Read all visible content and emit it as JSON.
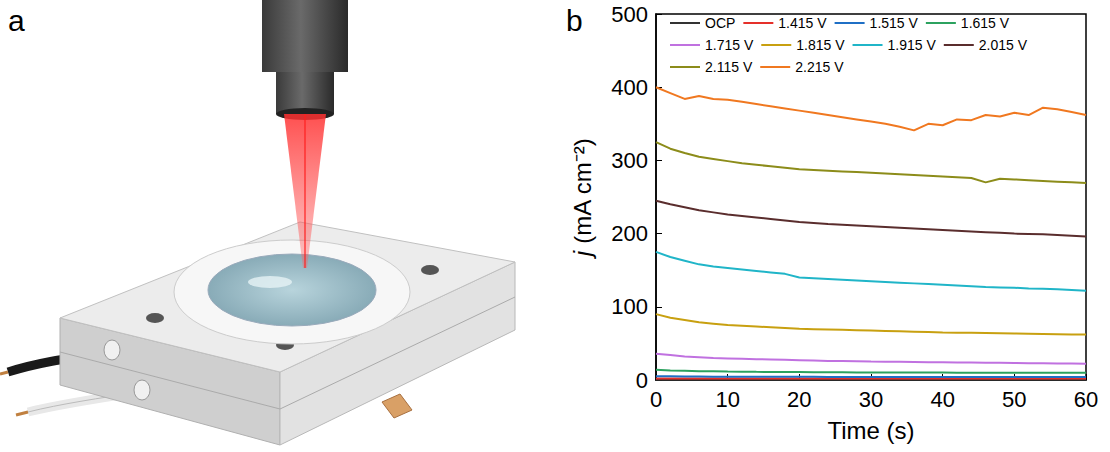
{
  "panel_labels": [
    "a",
    "b"
  ],
  "chart_data": {
    "type": "line",
    "x_label": "Time (s)",
    "y_label": "j (mA cm⁻²)",
    "xlim": [
      0,
      60
    ],
    "xticks": [
      0,
      10,
      20,
      30,
      40,
      50,
      60
    ],
    "ylim": [
      0,
      500
    ],
    "yticks": [
      0,
      100,
      200,
      300,
      400,
      500
    ],
    "grid": false,
    "legend": "upper left",
    "x": [
      0,
      2,
      4,
      6,
      8,
      10,
      12,
      14,
      16,
      18,
      20,
      22,
      24,
      26,
      28,
      30,
      32,
      34,
      36,
      38,
      40,
      42,
      44,
      46,
      48,
      50,
      52,
      54,
      56,
      58,
      60
    ],
    "series": [
      {
        "name": "OCP",
        "color": "#333333",
        "values": [
          0.3,
          0.3,
          0.3,
          0.3,
          0.3,
          0.3,
          0.3,
          0.3,
          0.3,
          0.3,
          0.3,
          0.3,
          0.3,
          0.3,
          0.3,
          0.3,
          0.3,
          0.3,
          0.3,
          0.3,
          0.3,
          0.3,
          0.3,
          0.3,
          0.3,
          0.3,
          0.3,
          0.3,
          0.3,
          0.3,
          0.3
        ]
      },
      {
        "name": "1.415 V",
        "color": "#e5302a",
        "values": [
          2,
          2,
          2,
          2,
          2,
          2,
          2,
          2,
          2,
          2,
          2,
          2,
          2,
          2,
          2,
          2,
          2,
          2,
          2,
          2,
          2,
          2,
          2,
          2,
          2,
          2,
          2,
          2,
          2,
          2,
          2
        ]
      },
      {
        "name": "1.515 V",
        "color": "#1f6fc5",
        "values": [
          5,
          5,
          4.8,
          4.7,
          4.6,
          4.5,
          4.5,
          4.4,
          4.4,
          4.3,
          4.3,
          4.3,
          4.2,
          4.2,
          4.2,
          4.1,
          4.1,
          4.1,
          4,
          4,
          4,
          4,
          4,
          4,
          4,
          4,
          4,
          4,
          4,
          4,
          4
        ]
      },
      {
        "name": "1.615 V",
        "color": "#2ca25f",
        "values": [
          14,
          13,
          12.5,
          12,
          11.8,
          11.5,
          11.3,
          11.1,
          11,
          10.9,
          10.8,
          10.7,
          10.6,
          10.5,
          10.4,
          10.3,
          10.3,
          10.2,
          10.2,
          10.1,
          10.1,
          10,
          10,
          10,
          10,
          10,
          10,
          10,
          10,
          10,
          10
        ]
      },
      {
        "name": "1.715 V",
        "color": "#c071e0",
        "values": [
          36,
          34,
          32,
          31,
          30,
          29.5,
          29,
          28.5,
          28,
          27.5,
          27,
          26.5,
          26,
          25.8,
          25.5,
          25.2,
          25,
          24.8,
          24.6,
          24.4,
          24.2,
          24,
          23.8,
          23.6,
          23.4,
          23.2,
          23,
          22.8,
          22.6,
          22.4,
          22.2
        ]
      },
      {
        "name": "1.815 V",
        "color": "#c8a010",
        "values": [
          90,
          85,
          82,
          79,
          77,
          75,
          74,
          73,
          72,
          71,
          70,
          69.5,
          69,
          68.5,
          68,
          67.5,
          67,
          66.5,
          66,
          65.5,
          65,
          64.7,
          64.4,
          64.1,
          63.8,
          63.5,
          63.2,
          62.9,
          62.6,
          62.3,
          62
        ]
      },
      {
        "name": "1.915 V",
        "color": "#20b5c8",
        "values": [
          175,
          168,
          163,
          158,
          155,
          153,
          151,
          149,
          147,
          145,
          140,
          139,
          138,
          137,
          136,
          135,
          134,
          133,
          132,
          131,
          130,
          129,
          128,
          127,
          126.5,
          126,
          125,
          124.5,
          124,
          123,
          122
        ]
      },
      {
        "name": "2.015 V",
        "color": "#5a2d2d",
        "values": [
          245,
          240,
          236,
          232,
          229,
          226,
          224,
          222,
          220,
          218,
          216,
          214.5,
          213,
          212,
          211,
          210,
          209,
          208,
          207,
          206,
          205,
          204,
          203,
          202,
          201,
          200,
          199.5,
          199,
          198,
          197,
          196
        ]
      },
      {
        "name": "2.115 V",
        "color": "#8c8c1a",
        "values": [
          325,
          316,
          310,
          305,
          302,
          299,
          296,
          294,
          292,
          290,
          288,
          287,
          286,
          285,
          284,
          283,
          282,
          281,
          280,
          279,
          278,
          277,
          276,
          270,
          275,
          274,
          273,
          272,
          271,
          270,
          269
        ]
      },
      {
        "name": "2.215 V",
        "color": "#f07820",
        "values": [
          400,
          392,
          384,
          388,
          384,
          383,
          380,
          377,
          374,
          371,
          368,
          365,
          362,
          359,
          356,
          353,
          350,
          346,
          341,
          350,
          348,
          356,
          355,
          362,
          360,
          365,
          362,
          372,
          370,
          366,
          362
        ]
      }
    ]
  }
}
